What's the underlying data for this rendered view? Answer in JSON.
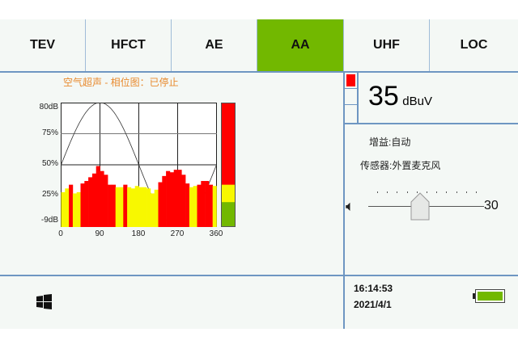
{
  "tabs": [
    {
      "label": "TEV"
    },
    {
      "label": "HFCT"
    },
    {
      "label": "AE"
    },
    {
      "label": "AA",
      "active": true
    },
    {
      "label": "UHF"
    },
    {
      "label": "LOC"
    }
  ],
  "colors": {
    "accent": "#72b800",
    "border": "#6e96c2",
    "red": "#ff0000",
    "yellow": "#f8f800",
    "green": "#72b800",
    "title": "#e88a2e"
  },
  "chart_title": "空气超声 - 相位图：已停止",
  "chart_data": {
    "type": "bar",
    "title": "空气超声 - 相位图：已停止",
    "x_range": [
      0,
      360
    ],
    "x_ticks": [
      "0",
      "90",
      "180",
      "270",
      "360"
    ],
    "y_ticks": [
      "80dB",
      "75%",
      "50%",
      "25%",
      "-9dB"
    ],
    "y_range_percent": [
      0,
      100
    ],
    "bin_width_deg": 9,
    "values": [
      28,
      31,
      34,
      27,
      28,
      35,
      37,
      40,
      43,
      49,
      45,
      42,
      34,
      34,
      32,
      32,
      34,
      32,
      31,
      33,
      32,
      32,
      31,
      27,
      30,
      36,
      41,
      45,
      44,
      46,
      46,
      42,
      35,
      32,
      33,
      34,
      37,
      37,
      34,
      33
    ],
    "colors": [
      "y",
      "y",
      "r",
      "y",
      "y",
      "r",
      "r",
      "r",
      "r",
      "r",
      "r",
      "r",
      "r",
      "r",
      "y",
      "y",
      "r",
      "y",
      "y",
      "y",
      "y",
      "y",
      "y",
      "y",
      "y",
      "r",
      "r",
      "r",
      "r",
      "r",
      "r",
      "r",
      "r",
      "y",
      "y",
      "r",
      "r",
      "r",
      "r",
      "y"
    ],
    "reference_curve": "sine",
    "grid": true
  },
  "level_meter": {
    "red_from_percent": 34,
    "yellow_from_percent": 20
  },
  "reading": {
    "value": "35",
    "unit": "dBuV"
  },
  "gain": "增益:自动",
  "sensor": "传感器:外置麦克风",
  "volume": {
    "value": "30",
    "level_percent": 45
  },
  "status": {
    "time": "16:14:53",
    "date": "2021/4/1",
    "battery_percent": 100
  }
}
